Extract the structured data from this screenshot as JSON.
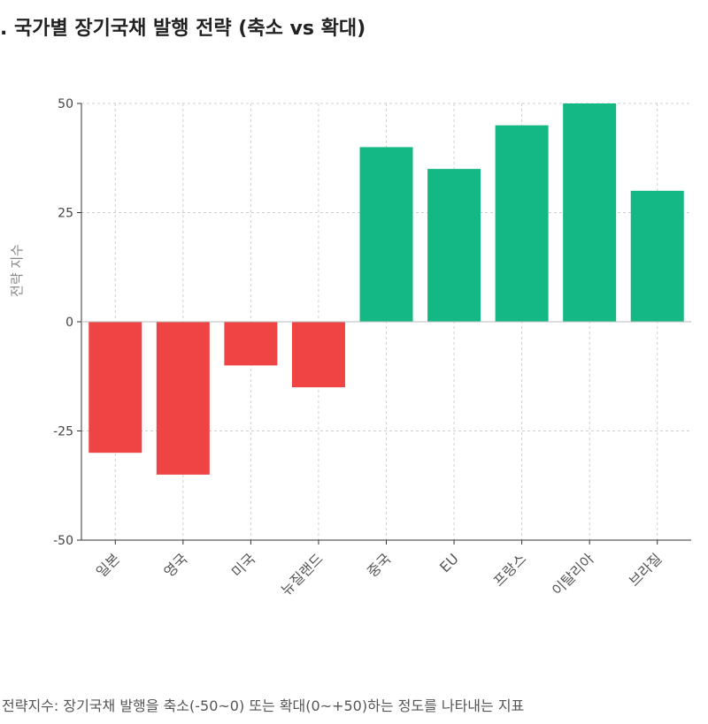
{
  "chart_data": {
    "type": "bar",
    "title": ". 국가별 장기국채 발행 전략 (축소 vs 확대)",
    "xlabel": "",
    "ylabel": "전략 지수",
    "categories": [
      "일본",
      "영국",
      "미국",
      "뉴질랜드",
      "중국",
      "EU",
      "프랑스",
      "이탈리아",
      "브라질"
    ],
    "values": [
      -30,
      -35,
      -10,
      -15,
      40,
      35,
      45,
      50,
      30
    ],
    "ylim": [
      -50,
      50
    ],
    "yticks": [
      "50",
      "25",
      "0",
      "-25",
      "-50"
    ],
    "grid": true,
    "colors": {
      "negative": "#ee4444",
      "positive": "#14b884"
    }
  },
  "footnote": "전략지수: 장기국채 발행을 축소(-50~0) 또는 확대(0~+50)하는 정도를 나타내는 지표"
}
